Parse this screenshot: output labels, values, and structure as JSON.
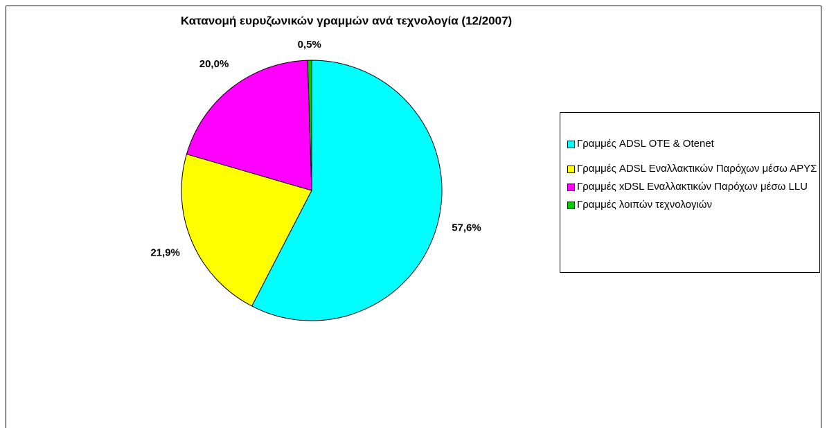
{
  "chart_data": {
    "type": "pie",
    "title": "Κατανομή ευρυζωνικών γραμμών ανά τεχνολογία (12/2007)",
    "series": [
      {
        "name": "Γραμμές ADSL OTE & Otenet",
        "color": "#00ffff"
      },
      {
        "name": "Γραμμές ADSL Εναλλακτικών Παρόχων μέσω ΑΡΥΣ",
        "color": "#ffff00"
      },
      {
        "name": "Γραμμές xDSL Εναλλακτικών Παρόχων μέσω LLU",
        "color": "#ff00ff"
      },
      {
        "name": "Γραμμές λοιπών τεχνολογιών",
        "color": "#00cc00"
      }
    ],
    "values": [
      57.6,
      21.9,
      20.0,
      0.5
    ],
    "value_labels": [
      "57,6%",
      "21,9%",
      "20,0%",
      "0,5%"
    ],
    "legend": "right"
  }
}
